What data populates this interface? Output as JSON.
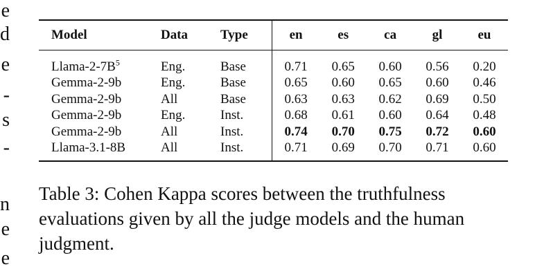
{
  "margin_fragments": [
    "e",
    "d",
    "e",
    "-",
    "s",
    "-",
    "n",
    "e",
    "e"
  ],
  "table": {
    "headers": [
      "Model",
      "Data",
      "Type",
      "en",
      "es",
      "ca",
      "gl",
      "eu"
    ],
    "rows": [
      {
        "model": "Llama-2-7B",
        "footnote": "5",
        "data": "Eng.",
        "type": "Base",
        "scores": [
          "0.71",
          "0.65",
          "0.60",
          "0.56",
          "0.20"
        ],
        "bold": false
      },
      {
        "model": "Gemma-2-9b",
        "footnote": "",
        "data": "Eng.",
        "type": "Base",
        "scores": [
          "0.65",
          "0.60",
          "0.65",
          "0.60",
          "0.46"
        ],
        "bold": false
      },
      {
        "model": "Gemma-2-9b",
        "footnote": "",
        "data": "All",
        "type": "Base",
        "scores": [
          "0.63",
          "0.63",
          "0.62",
          "0.69",
          "0.50"
        ],
        "bold": false
      },
      {
        "model": "Gemma-2-9b",
        "footnote": "",
        "data": "Eng.",
        "type": "Inst.",
        "scores": [
          "0.68",
          "0.61",
          "0.60",
          "0.64",
          "0.48"
        ],
        "bold": false
      },
      {
        "model": "Gemma-2-9b",
        "footnote": "",
        "data": "All",
        "type": "Inst.",
        "scores": [
          "0.74",
          "0.70",
          "0.75",
          "0.72",
          "0.60"
        ],
        "bold": true
      },
      {
        "model": "Llama-3.1-8B",
        "footnote": "",
        "data": "All",
        "type": "Inst.",
        "scores": [
          "0.71",
          "0.69",
          "0.70",
          "0.71",
          "0.60"
        ],
        "bold": false
      }
    ]
  },
  "caption": "Table 3: Cohen Kappa scores between the truthfulness evaluations given by all the judge models and the human judgment."
}
